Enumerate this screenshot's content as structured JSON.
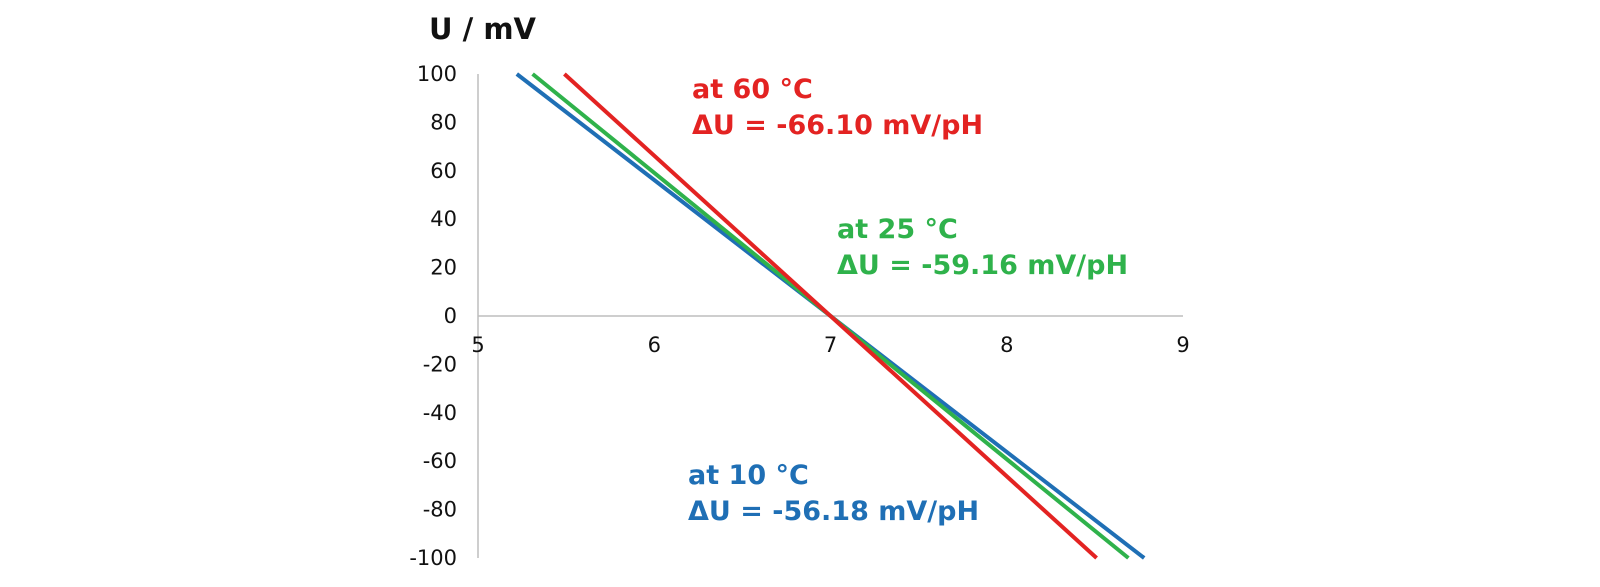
{
  "chart_data": {
    "type": "line",
    "title": "",
    "xlabel": "",
    "ylabel": "U / mV",
    "xlim": [
      5,
      9
    ],
    "ylim": [
      -100,
      100
    ],
    "x_ticks": [
      5,
      6,
      7,
      8,
      9
    ],
    "y_ticks": [
      100,
      80,
      60,
      40,
      20,
      0,
      -20,
      -40,
      -60,
      -80,
      -100
    ],
    "grid": false,
    "series": [
      {
        "name": "at 10 °C",
        "slope_label": "ΔU = -56.18 mV/pH",
        "slope": -56.18,
        "x": [
          5.22,
          8.78
        ],
        "y": [
          100,
          -100
        ],
        "color": "#1f6fb5"
      },
      {
        "name": "at 25 °C",
        "slope_label": "ΔU = -59.16 mV/pH",
        "slope": -59.16,
        "x": [
          5.31,
          8.69
        ],
        "y": [
          100,
          -100
        ],
        "color": "#2fb24b"
      },
      {
        "name": "at 60 °C",
        "slope_label": "ΔU = -66.10 mV/pH",
        "slope": -66.1,
        "x": [
          5.49,
          8.51
        ],
        "y": [
          100,
          -100
        ],
        "color": "#e32322"
      }
    ]
  }
}
